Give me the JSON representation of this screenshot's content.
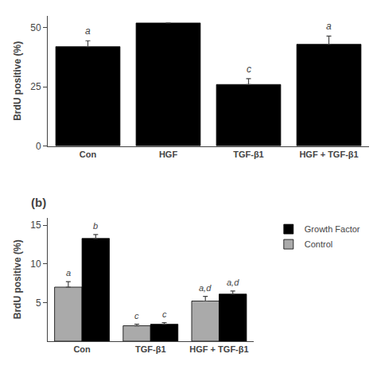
{
  "chart_data": [
    {
      "type": "bar",
      "categories": [
        "Con",
        "HGF",
        "TGF-β1",
        "HGF + TGF-β1"
      ],
      "values": [
        42,
        52,
        26,
        43
      ],
      "errors": [
        2.5,
        0,
        2.5,
        3.5
      ],
      "annotations": [
        "a",
        null,
        "c",
        "a"
      ],
      "color": "#000000",
      "y_label": "BrdU positive (%)",
      "ylim": [
        0,
        55
      ],
      "yticks": [
        0,
        25,
        50
      ],
      "grid": false
    },
    {
      "type": "bar",
      "title": "(b)",
      "categories": [
        "Con",
        "TGF-β1",
        "HGF + TGF-β1"
      ],
      "series": [
        {
          "name": "Control",
          "color": "#aaaaaa",
          "values": [
            7.0,
            2.0,
            5.2
          ],
          "errors": [
            0.7,
            0.2,
            0.6
          ],
          "annotations": [
            "a",
            "c",
            "a,d"
          ]
        },
        {
          "name": "Growth Factor",
          "color": "#000000",
          "values": [
            13.3,
            2.2,
            6.1
          ],
          "errors": [
            0.5,
            0.2,
            0.4
          ],
          "annotations": [
            "b",
            "c",
            "a,d"
          ]
        }
      ],
      "y_label": "BrdU positive (%)",
      "ylim": [
        0,
        16
      ],
      "yticks": [
        5,
        10,
        15
      ],
      "grid": false,
      "legend": "right"
    }
  ]
}
